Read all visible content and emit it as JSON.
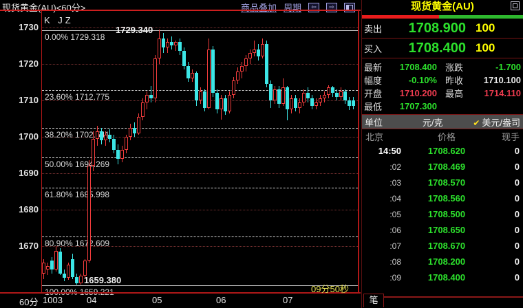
{
  "colors": {
    "green": "#2ce02c",
    "red": "#f03c50",
    "white": "#e8e8e8",
    "yellow": "#ffff00",
    "up_candle": "#f23c3c",
    "down_candle": "#3ce6e6",
    "accent_red_line": "#cc1f1f"
  },
  "chart_header": {
    "title": "现货黄金(AU)<60分>",
    "overlay_label": "商品叠加",
    "period_label": "周期",
    "icons": [
      "left-arrow-icon",
      "right-arrow-icon",
      "split-window-icon"
    ]
  },
  "chart_data": {
    "type": "candlestick",
    "indicator_label": "K JZ",
    "interval_label": "60分",
    "countdown": "09分50秒",
    "high_label": "1729.340",
    "low_label": "1659.380",
    "y_ticks": [
      1730,
      1720,
      1710,
      1700,
      1690,
      1680,
      1670
    ],
    "x_ticks": [
      "1003",
      "04",
      "05",
      "06",
      "07"
    ],
    "ylim": [
      1655,
      1735
    ],
    "grid": "horizontal-dotted",
    "fib_levels": [
      {
        "pct": "0.00%",
        "price": "1729.318",
        "style": "solid"
      },
      {
        "pct": "23.60%",
        "price": "1712.775",
        "style": "dashed"
      },
      {
        "pct": "38.20%",
        "price": "1702.541",
        "style": "dashed"
      },
      {
        "pct": "50.00%",
        "price": "1694.269",
        "style": "dashed"
      },
      {
        "pct": "61.80%",
        "price": "1685.998",
        "style": "dashed"
      },
      {
        "pct": "80.90%",
        "price": "1672.609",
        "style": "dashed"
      },
      {
        "pct": "100.00%",
        "price": "1659.221",
        "style": "solid"
      }
    ],
    "candles": [
      [
        1662.5,
        1666.5,
        1661,
        1665.5
      ],
      [
        1663.5,
        1665.5,
        1662,
        1664.5
      ],
      [
        1666,
        1667,
        1662.5,
        1663.5
      ],
      [
        1663.5,
        1670,
        1663,
        1668.7
      ],
      [
        1668.5,
        1669.5,
        1662,
        1662.5
      ],
      [
        1662.5,
        1663.5,
        1660.4,
        1661.3
      ],
      [
        1661.3,
        1665.5,
        1660.8,
        1665
      ],
      [
        1666.5,
        1668,
        1661,
        1661.5
      ],
      [
        1661.5,
        1662.5,
        1659.38,
        1659.9
      ],
      [
        1659.9,
        1662.5,
        1659.4,
        1661.8
      ],
      [
        1661.8,
        1666.5,
        1661,
        1666
      ],
      [
        1666,
        1693.5,
        1665.5,
        1692
      ],
      [
        1692,
        1701.5,
        1690.5,
        1699.5
      ],
      [
        1699.5,
        1703,
        1697.5,
        1701.5
      ],
      [
        1701.5,
        1702.5,
        1698,
        1699
      ],
      [
        1699,
        1701.5,
        1697.5,
        1700.5
      ],
      [
        1700.5,
        1702,
        1698.5,
        1699.5
      ],
      [
        1699.5,
        1700.5,
        1695.5,
        1696.5
      ],
      [
        1696.5,
        1698,
        1692.5,
        1694
      ],
      [
        1694,
        1697.5,
        1693,
        1696.5
      ],
      [
        1696.5,
        1700.5,
        1695.5,
        1700
      ],
      [
        1700,
        1703.5,
        1699,
        1702.5
      ],
      [
        1702.5,
        1704,
        1700,
        1701
      ],
      [
        1701,
        1706.5,
        1700.5,
        1705.5
      ],
      [
        1705.5,
        1710.5,
        1704.5,
        1709.5
      ],
      [
        1709.5,
        1712.5,
        1707.5,
        1711.5
      ],
      [
        1711.5,
        1714,
        1709.5,
        1710.5
      ],
      [
        1710.5,
        1722.5,
        1709.5,
        1721.5
      ],
      [
        1721.5,
        1729.34,
        1720,
        1727
      ],
      [
        1727,
        1728.5,
        1723,
        1724.5
      ],
      [
        1724.5,
        1727,
        1723,
        1726
      ],
      [
        1726,
        1727.5,
        1724,
        1725
      ],
      [
        1725,
        1726.5,
        1723.5,
        1726
      ],
      [
        1726,
        1727,
        1722.5,
        1723.5
      ],
      [
        1723.5,
        1724.5,
        1718.5,
        1719.5
      ],
      [
        1719.5,
        1720.5,
        1715,
        1716
      ],
      [
        1716,
        1718.5,
        1715,
        1717.5
      ],
      [
        1717.5,
        1718,
        1708.5,
        1710
      ],
      [
        1710,
        1713.5,
        1709,
        1712.5
      ],
      [
        1712.5,
        1713,
        1707,
        1708
      ],
      [
        1708,
        1727,
        1707.5,
        1724
      ],
      [
        1724,
        1725,
        1711,
        1712
      ],
      [
        1712,
        1713,
        1706.5,
        1707.5
      ],
      [
        1707.5,
        1711.5,
        1704.8,
        1710.5
      ],
      [
        1710.5,
        1711.5,
        1706,
        1707
      ],
      [
        1707,
        1712.5,
        1706.5,
        1711.5
      ],
      [
        1711.5,
        1716.5,
        1710.5,
        1715.5
      ],
      [
        1715.5,
        1719,
        1714.5,
        1718
      ],
      [
        1718,
        1720.5,
        1716,
        1719.5
      ],
      [
        1719.5,
        1722.5,
        1718,
        1721.5
      ],
      [
        1721.5,
        1724,
        1720,
        1723
      ],
      [
        1723,
        1726.5,
        1722,
        1724
      ],
      [
        1724,
        1725.5,
        1721,
        1722
      ],
      [
        1722,
        1727,
        1721.5,
        1725.5
      ],
      [
        1725.5,
        1726.5,
        1713.5,
        1714.5
      ],
      [
        1714.5,
        1715.5,
        1708,
        1710
      ],
      [
        1710,
        1714,
        1709,
        1713
      ],
      [
        1713,
        1714,
        1708,
        1709
      ],
      [
        1709,
        1716,
        1708.5,
        1713.5
      ],
      [
        1713.5,
        1714,
        1704.5,
        1707.5
      ],
      [
        1707.5,
        1711.5,
        1706.5,
        1710.5
      ],
      [
        1710.5,
        1711.5,
        1707,
        1708
      ],
      [
        1708,
        1710.5,
        1706.5,
        1709.5
      ],
      [
        1709.5,
        1713,
        1708.5,
        1712
      ],
      [
        1712,
        1713.5,
        1709.5,
        1710.5
      ],
      [
        1710.5,
        1711.5,
        1707.5,
        1708.5
      ],
      [
        1708.5,
        1710.5,
        1707.5,
        1709.5
      ],
      [
        1709.5,
        1711.5,
        1708.5,
        1710.5
      ],
      [
        1710.5,
        1712.5,
        1709.5,
        1711.5
      ],
      [
        1711.5,
        1714.11,
        1710.5,
        1713.5
      ],
      [
        1713.5,
        1714,
        1711,
        1712
      ],
      [
        1712,
        1713,
        1710,
        1711
      ],
      [
        1711,
        1713.5,
        1710,
        1712.5
      ],
      [
        1712.5,
        1713,
        1709,
        1710
      ],
      [
        1710,
        1711,
        1707.3,
        1708.5
      ],
      [
        1710,
        1711,
        1707.5,
        1708.4
      ]
    ]
  },
  "quote_panel": {
    "title": "现货黄金(AU)",
    "sell": {
      "label": "卖出",
      "price": "1708.900",
      "size": "100"
    },
    "buy": {
      "label": "买入",
      "price": "1708.400",
      "size": "100"
    },
    "ratio": {
      "red_pct": 48,
      "green_pct": 52
    },
    "stats": [
      {
        "label": "最新",
        "value": "1708.400",
        "color": "green"
      },
      {
        "label": "涨跌",
        "value": "-1.700",
        "color": "green"
      },
      {
        "label": "幅度",
        "value": "-0.10%",
        "color": "green"
      },
      {
        "label": "昨收",
        "value": "1710.100",
        "color": "white"
      },
      {
        "label": "开盘",
        "value": "1710.200",
        "color": "red"
      },
      {
        "label": "最高",
        "value": "1714.110",
        "color": "red"
      },
      {
        "label": "最低",
        "value": "1707.300",
        "color": "green"
      }
    ],
    "unit_row": {
      "label": "单位",
      "option_gram": "元/克",
      "check": "✔",
      "option_ounce": "美元/盎司"
    },
    "table": {
      "headers": [
        "北京",
        "价格",
        "现手"
      ],
      "rows": [
        [
          "14:50",
          "1708.620",
          "0"
        ],
        [
          ":02",
          "1708.469",
          "0"
        ],
        [
          ":03",
          "1708.570",
          "0"
        ],
        [
          ":04",
          "1708.560",
          "0"
        ],
        [
          ":05",
          "1708.500",
          "0"
        ],
        [
          ":06",
          "1708.650",
          "0"
        ],
        [
          ":07",
          "1708.670",
          "0"
        ],
        [
          ":08",
          "1708.200",
          "0"
        ],
        [
          ":09",
          "1708.400",
          "0"
        ]
      ]
    },
    "tab_label": "笔"
  }
}
